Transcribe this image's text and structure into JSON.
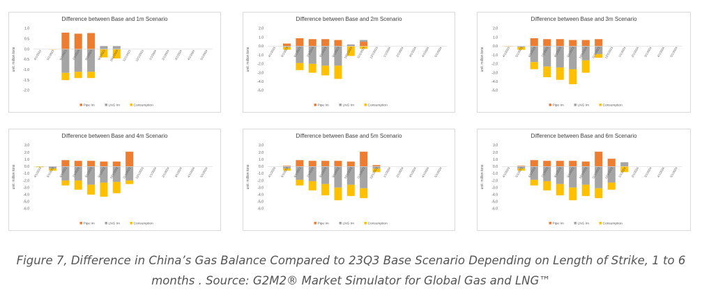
{
  "chart_data": [
    {
      "type": "bar",
      "stacked": true,
      "title": "Difference between Base and 1m Scenario",
      "y_label": "unit: million tons",
      "categories": [
        "4/1/2023",
        "5/1/2023",
        "6/1/2023",
        "7/1/2023",
        "8/1/2023",
        "9/1/2023",
        "10/1/2023",
        "11/1/2023",
        "12/1/2023",
        "1/1/2024",
        "2/1/2024",
        "3/1/2024",
        "4/1/2024",
        "5/1/2024"
      ],
      "ylim": [
        -2,
        1
      ],
      "yticks": [
        {
          "value": -2,
          "label": "-2.0"
        },
        {
          "value": -1.5,
          "label": "-1.5"
        },
        {
          "value": -1,
          "label": "-1.0"
        },
        {
          "value": -0.5,
          "label": "-0.5"
        },
        {
          "value": 0,
          "label": "0.0"
        },
        {
          "value": 0.5,
          "label": "0.5"
        },
        {
          "value": 1,
          "label": "1.0"
        }
      ],
      "series": [
        {
          "name": "Pipe Im",
          "color": "#ed7d31",
          "values": [
            0,
            0,
            0.8,
            0.75,
            0.78,
            0,
            0,
            0,
            0,
            0,
            0,
            0,
            0,
            0
          ]
        },
        {
          "name": "LNG Im",
          "color": "#a5a5a5",
          "values": [
            0,
            0,
            -1.15,
            -1.1,
            -1.1,
            0.15,
            0.15,
            0,
            0,
            0,
            0,
            0,
            0,
            0
          ]
        },
        {
          "name": "Consumption",
          "color": "#ffc000",
          "values": [
            0,
            -0.02,
            -0.35,
            -0.3,
            -0.3,
            -0.4,
            -0.45,
            0,
            0,
            0,
            0,
            0,
            0,
            0
          ]
        }
      ]
    },
    {
      "type": "bar",
      "stacked": true,
      "title": "Difference between Base and 2m Scenario",
      "y_label": "unit: million tons",
      "categories": [
        "4/1/2023",
        "5/1/2023",
        "6/1/2023",
        "7/1/2023",
        "8/1/2023",
        "9/1/2023",
        "10/1/2023",
        "11/1/2023",
        "12/1/2023",
        "1/1/2024",
        "2/1/2024",
        "3/1/2024",
        "4/1/2024",
        "5/1/2024"
      ],
      "ylim": [
        -5,
        2
      ],
      "yticks": [
        {
          "value": -5,
          "label": "-5.0"
        },
        {
          "value": -4,
          "label": "-4.0"
        },
        {
          "value": -3,
          "label": "-3.0"
        },
        {
          "value": -2,
          "label": "-2.0"
        },
        {
          "value": -1,
          "label": "-1.0"
        },
        {
          "value": 0,
          "label": "0.0"
        },
        {
          "value": 1,
          "label": "1.0"
        },
        {
          "value": 2,
          "label": "2.0"
        }
      ],
      "series": [
        {
          "name": "Pipe Im",
          "color": "#ed7d31",
          "values": [
            0,
            0.3,
            0.9,
            0.8,
            0.8,
            0.7,
            0,
            0.5,
            0,
            0,
            0,
            0,
            0,
            0
          ]
        },
        {
          "name": "LNG Im",
          "color": "#a5a5a5",
          "values": [
            0,
            -0.1,
            -1.9,
            -2.0,
            -2.2,
            -2.2,
            0.2,
            0.2,
            0,
            0,
            0,
            0,
            0,
            0
          ]
        },
        {
          "name": "Consumption",
          "color": "#ffc000",
          "values": [
            0,
            -0.3,
            -0.8,
            -1.0,
            -1.1,
            -1.5,
            -1.1,
            -0.3,
            0,
            0,
            0,
            0,
            0,
            0
          ]
        }
      ]
    },
    {
      "type": "bar",
      "stacked": true,
      "title": "Difference between Base and 3m Scenario",
      "y_label": "unit: million tons",
      "categories": [
        "4/1/2023",
        "5/1/2023",
        "6/1/2023",
        "7/1/2023",
        "8/1/2023",
        "9/1/2023",
        "10/1/2023",
        "11/1/2023",
        "12/1/2023",
        "1/1/2024",
        "2/1/2024",
        "3/1/2024",
        "4/1/2024",
        "5/1/2024"
      ],
      "ylim": [
        -5,
        2
      ],
      "yticks": [
        {
          "value": -5,
          "label": "-5.0"
        },
        {
          "value": -4,
          "label": "-4.0"
        },
        {
          "value": -3,
          "label": "-3.0"
        },
        {
          "value": -2,
          "label": "-2.0"
        },
        {
          "value": -1,
          "label": "-1.0"
        },
        {
          "value": 0,
          "label": "0.0"
        },
        {
          "value": 1,
          "label": "1.0"
        },
        {
          "value": 2,
          "label": "2.0"
        }
      ],
      "series": [
        {
          "name": "Pipe Im",
          "color": "#ed7d31",
          "values": [
            0,
            0,
            0.9,
            0.8,
            0.8,
            0.7,
            0.7,
            0.8,
            0,
            0,
            0,
            0,
            0,
            0
          ]
        },
        {
          "name": "LNG Im",
          "color": "#a5a5a5",
          "values": [
            0,
            -0.1,
            -1.8,
            -2.3,
            -2.4,
            -2.6,
            -1.6,
            -0.9,
            0,
            0,
            0,
            0,
            0,
            0
          ]
        },
        {
          "name": "Consumption",
          "color": "#ffc000",
          "values": [
            -0.05,
            -0.3,
            -0.8,
            -1.2,
            -1.4,
            -1.7,
            -1.4,
            -0.4,
            0,
            0,
            0,
            0,
            0,
            0
          ]
        }
      ]
    },
    {
      "type": "bar",
      "stacked": true,
      "title": "Difference between Base and 4m Scenario",
      "y_label": "unit: million tons",
      "categories": [
        "4/1/2023",
        "5/1/2023",
        "6/1/2023",
        "7/1/2023",
        "8/1/2023",
        "9/1/2023",
        "10/1/2023",
        "11/1/2023",
        "12/1/2023",
        "1/1/2024",
        "2/1/2024",
        "3/1/2024",
        "4/1/2024",
        "5/1/2024"
      ],
      "ylim": [
        -6,
        3
      ],
      "yticks": [
        {
          "value": -6,
          "label": "-6.0"
        },
        {
          "value": -5,
          "label": "-5.0"
        },
        {
          "value": -4,
          "label": "-4.0"
        },
        {
          "value": -3,
          "label": "-3.0"
        },
        {
          "value": -2,
          "label": "-2.0"
        },
        {
          "value": -1,
          "label": "-1.0"
        },
        {
          "value": 0,
          "label": "0.0"
        },
        {
          "value": 1,
          "label": "1.0"
        },
        {
          "value": 2,
          "label": "2.0"
        },
        {
          "value": 3,
          "label": "3.0"
        }
      ],
      "series": [
        {
          "name": "Pipe Im",
          "color": "#ed7d31",
          "values": [
            0,
            0,
            0.9,
            0.8,
            0.8,
            0.7,
            0.7,
            2.1,
            0,
            0,
            0,
            0,
            0,
            0
          ]
        },
        {
          "name": "LNG Im",
          "color": "#a5a5a5",
          "values": [
            0,
            -0.3,
            -2.0,
            -2.0,
            -2.6,
            -2.3,
            -2.2,
            -2.0,
            0,
            0,
            0,
            0,
            0,
            0
          ]
        },
        {
          "name": "Consumption",
          "color": "#ffc000",
          "values": [
            -0.1,
            -0.3,
            -0.7,
            -1.3,
            -1.4,
            -2.0,
            -1.6,
            -0.5,
            0,
            0,
            0,
            0,
            0,
            0
          ]
        }
      ]
    },
    {
      "type": "bar",
      "stacked": true,
      "title": "Difference between Base and 5m Scenario",
      "y_label": "unit: million tons",
      "categories": [
        "4/1/2023",
        "5/1/2023",
        "6/1/2023",
        "7/1/2023",
        "8/1/2023",
        "9/1/2023",
        "10/1/2023",
        "11/1/2023",
        "12/1/2023",
        "1/1/2024",
        "2/1/2024",
        "3/1/2024",
        "4/1/2024",
        "5/1/2024"
      ],
      "ylim": [
        -6,
        3
      ],
      "yticks": [
        {
          "value": -6,
          "label": "-6.0"
        },
        {
          "value": -5,
          "label": "-5.0"
        },
        {
          "value": -4,
          "label": "-4.0"
        },
        {
          "value": -3,
          "label": "-3.0"
        },
        {
          "value": -2,
          "label": "-2.0"
        },
        {
          "value": -1,
          "label": "-1.0"
        },
        {
          "value": 0,
          "label": "0.0"
        },
        {
          "value": 1,
          "label": "1.0"
        },
        {
          "value": 2,
          "label": "2.0"
        },
        {
          "value": 3,
          "label": "3.0"
        }
      ],
      "series": [
        {
          "name": "Pipe Im",
          "color": "#ed7d31",
          "values": [
            0,
            0.1,
            0.9,
            0.8,
            0.8,
            0.8,
            0.7,
            2.1,
            0.2,
            0,
            0,
            0,
            0,
            0
          ]
        },
        {
          "name": "LNG Im",
          "color": "#a5a5a5",
          "values": [
            0,
            -0.3,
            -1.9,
            -2.1,
            -2.5,
            -3.0,
            -2.6,
            -3.1,
            -0.3,
            0,
            0,
            0,
            0,
            0
          ]
        },
        {
          "name": "Consumption",
          "color": "#ffc000",
          "values": [
            0,
            -0.3,
            -0.8,
            -1.3,
            -1.6,
            -1.8,
            -1.6,
            -1.4,
            -0.5,
            0,
            0,
            0,
            0,
            0
          ]
        }
      ]
    },
    {
      "type": "bar",
      "stacked": true,
      "title": "Difference between Base and 6m Scenario",
      "y_label": "unit: million tons",
      "categories": [
        "4/1/2023",
        "5/1/2023",
        "6/1/2023",
        "7/1/2023",
        "8/1/2023",
        "9/1/2023",
        "10/1/2023",
        "11/1/2023",
        "12/1/2023",
        "1/1/2024",
        "2/1/2024",
        "3/1/2024",
        "4/1/2024",
        "5/1/2024"
      ],
      "ylim": [
        -6,
        3
      ],
      "yticks": [
        {
          "value": -6,
          "label": "-6.0"
        },
        {
          "value": -5,
          "label": "-5.0"
        },
        {
          "value": -4,
          "label": "-4.0"
        },
        {
          "value": -3,
          "label": "-3.0"
        },
        {
          "value": -2,
          "label": "-2.0"
        },
        {
          "value": -1,
          "label": "-1.0"
        },
        {
          "value": 0,
          "label": "0.0"
        },
        {
          "value": 1,
          "label": "1.0"
        },
        {
          "value": 2,
          "label": "2.0"
        },
        {
          "value": 3,
          "label": "3.0"
        }
      ],
      "series": [
        {
          "name": "Pipe Im",
          "color": "#ed7d31",
          "values": [
            0,
            0.1,
            0.9,
            0.8,
            0.8,
            0.8,
            0.7,
            2.1,
            1.1,
            0,
            0,
            0,
            0,
            0
          ]
        },
        {
          "name": "LNG Im",
          "color": "#a5a5a5",
          "values": [
            0,
            -0.3,
            -1.9,
            -2.1,
            -2.5,
            -3.0,
            -2.6,
            -3.1,
            -2.3,
            0.6,
            0,
            0,
            0,
            0
          ]
        },
        {
          "name": "Consumption",
          "color": "#ffc000",
          "values": [
            0,
            -0.3,
            -0.8,
            -1.3,
            -1.6,
            -1.8,
            -1.6,
            -1.4,
            -1.0,
            -0.8,
            0,
            0,
            0,
            0
          ]
        }
      ]
    }
  ],
  "caption": "Figure 7, Difference in China’s Gas Balance Compared to 23Q3 Base Scenario Depending on Length of Strike, 1 to 6 months . Source: G2M2® Market Simulator for Global Gas and LNG™"
}
